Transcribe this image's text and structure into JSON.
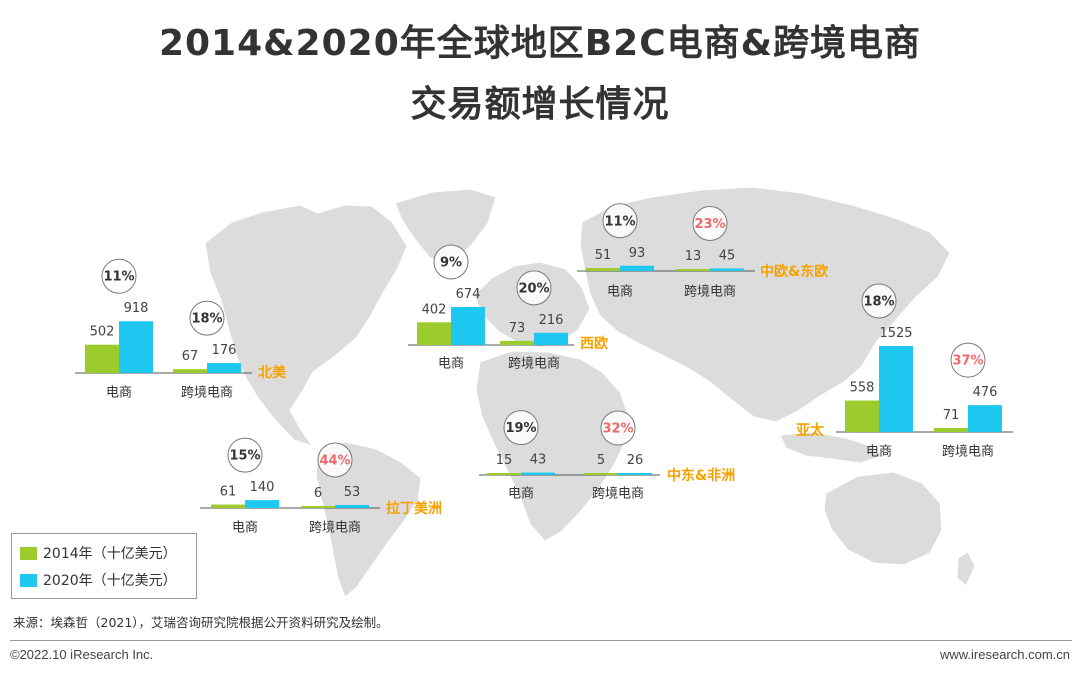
{
  "title_line1": "2014&2020年全球地区B2C电商&跨境电商",
  "title_line2": "交易额增长情况",
  "colors": {
    "y2014": "#9ccb2d",
    "y2020": "#1ec8f0",
    "region_label": "#f5a200",
    "map": "#dcdcdc",
    "cagr_normal": "#333333",
    "cagr_high": "#ee6a6a"
  },
  "legend": {
    "items": [
      {
        "label": "2014年（十亿美元）"
      },
      {
        "label": "2020年（十亿美元）"
      }
    ]
  },
  "chart_data": {
    "type": "bar",
    "series_names": [
      "2014年（十亿美元）",
      "2020年（十亿美元）"
    ],
    "regions": [
      {
        "name": "北美",
        "groups": [
          {
            "category": "电商",
            "v2014": 502,
            "v2020": 918,
            "cagr": "11%",
            "highlight": false
          },
          {
            "category": "跨境电商",
            "v2014": 67,
            "v2020": 176,
            "cagr": "18%",
            "highlight": false
          }
        ]
      },
      {
        "name": "拉丁美洲",
        "groups": [
          {
            "category": "电商",
            "v2014": 61,
            "v2020": 140,
            "cagr": "15%",
            "highlight": false
          },
          {
            "category": "跨境电商",
            "v2014": 6,
            "v2020": 53,
            "cagr": "44%",
            "highlight": true
          }
        ]
      },
      {
        "name": "西欧",
        "groups": [
          {
            "category": "电商",
            "v2014": 402,
            "v2020": 674,
            "cagr": "9%",
            "highlight": false
          },
          {
            "category": "跨境电商",
            "v2014": 73,
            "v2020": 216,
            "cagr": "20%",
            "highlight": false
          }
        ]
      },
      {
        "name": "中欧&东欧",
        "groups": [
          {
            "category": "电商",
            "v2014": 51,
            "v2020": 93,
            "cagr": "11%",
            "highlight": false
          },
          {
            "category": "跨境电商",
            "v2014": 13,
            "v2020": 45,
            "cagr": "23%",
            "highlight": true
          }
        ]
      },
      {
        "name": "中东&非洲",
        "groups": [
          {
            "category": "电商",
            "v2014": 15,
            "v2020": 43,
            "cagr": "19%",
            "highlight": false
          },
          {
            "category": "跨境电商",
            "v2014": 5,
            "v2020": 26,
            "cagr": "32%",
            "highlight": true
          }
        ]
      },
      {
        "name": "亚太",
        "groups": [
          {
            "category": "电商",
            "v2014": 558,
            "v2020": 1525,
            "cagr": "18%",
            "highlight": false
          },
          {
            "category": "跨境电商",
            "v2014": 71,
            "v2020": 476,
            "cagr": "37%",
            "highlight": true
          }
        ]
      }
    ]
  },
  "source": "来源：埃森哲（2021），艾瑞咨询研究院根据公开资料研究及绘制。",
  "footer": {
    "left": "©2022.10 iResearch Inc.",
    "right": "www.iresearch.com.cn"
  }
}
